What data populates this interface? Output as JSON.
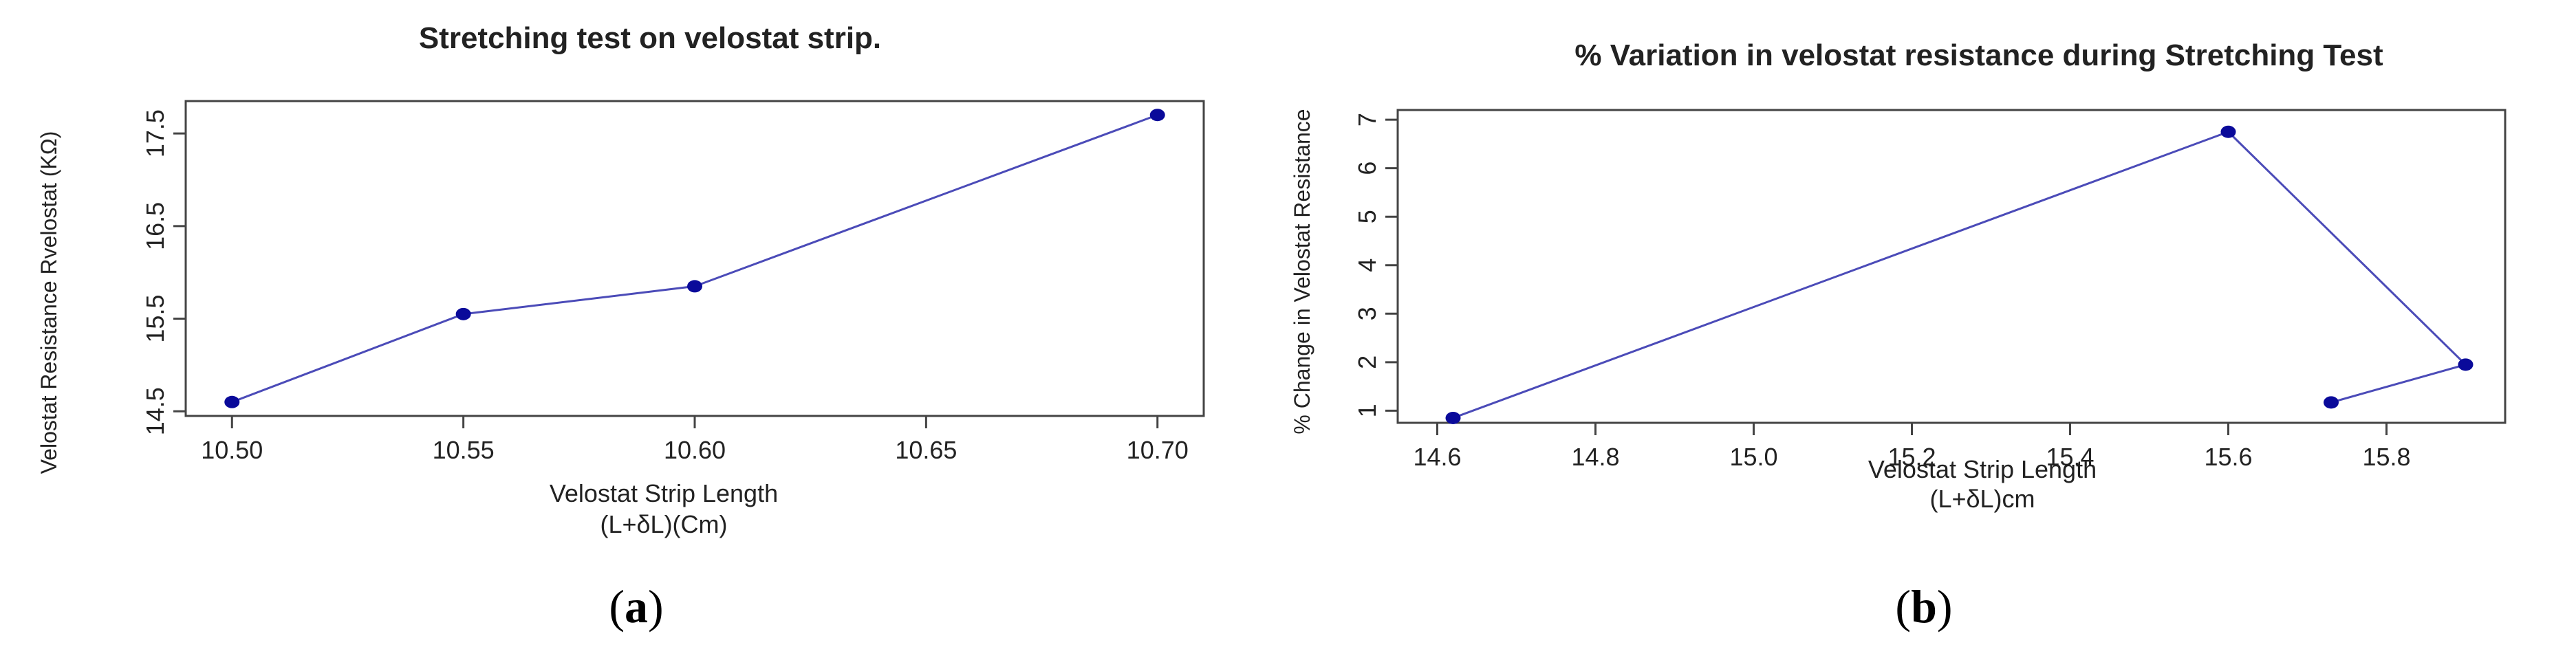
{
  "chart_data": [
    {
      "type": "line",
      "panel_label": "a",
      "title": "Stretching test on velostat strip.",
      "xlabel": "Velostat Strip Length",
      "xlabel_sub": "(L+δL)(Cm)",
      "ylabel": "Velostat Resistance   Rvelostat (KΩ)",
      "xlim": [
        10.49,
        10.71
      ],
      "ylim": [
        14.45,
        17.85
      ],
      "xticks": [
        "10.50",
        "10.55",
        "10.60",
        "10.65",
        "10.70"
      ],
      "yticks": [
        "14.5",
        "15.5",
        "16.5",
        "17.5"
      ],
      "series": [
        {
          "x": [
            10.5,
            10.55,
            10.6,
            10.7
          ],
          "y": [
            14.6,
            15.55,
            15.85,
            17.7
          ]
        }
      ],
      "colors": {
        "point": "#0a0a9a",
        "line": "#4b4bb8"
      }
    },
    {
      "type": "line",
      "panel_label": "b",
      "title": "% Variation in velostat resistance during Stretching Test",
      "xlabel": "Velostat Strip Length",
      "xlabel_sub": "(L+δL)cm",
      "ylabel": "% Change in Velostat Resistance",
      "xlim": [
        14.55,
        15.95
      ],
      "ylim": [
        0.75,
        7.2
      ],
      "xticks": [
        "14.6",
        "14.8",
        "15.0",
        "15.2",
        "15.4",
        "15.6",
        "15.8"
      ],
      "yticks": [
        "1",
        "2",
        "3",
        "4",
        "5",
        "6",
        "7"
      ],
      "series": [
        {
          "x": [
            14.62,
            15.6,
            15.9,
            15.73
          ],
          "y": [
            0.85,
            6.75,
            1.95,
            1.17
          ]
        }
      ],
      "colors": {
        "point": "#0a0a9a",
        "line": "#4b4bb8"
      }
    }
  ]
}
